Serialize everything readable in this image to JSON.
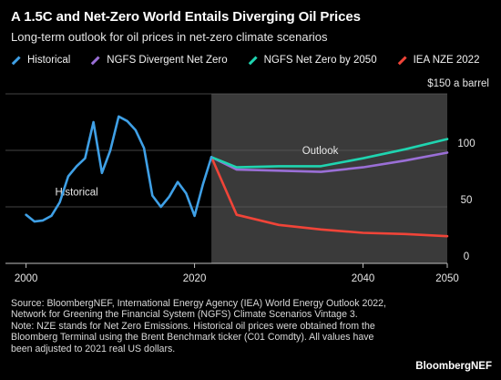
{
  "title": "A 1.5C and Net-Zero World Entails Diverging Oil Prices",
  "subtitle": "Long-term outlook for oil prices in net-zero climate scenarios",
  "legend": [
    {
      "name": "Historical",
      "color": "#3fa0e6"
    },
    {
      "name": "NGFS Divergent Net Zero",
      "color": "#9a6fd6"
    },
    {
      "name": "NGFS Net Zero by 2050",
      "color": "#1fd4b0"
    },
    {
      "name": "IEA NZE 2022",
      "color": "#f04438"
    }
  ],
  "footer": {
    "source": "Source: BloombergNEF, International Energy Agency (IEA) World Energy Outlook 2022, Network for Greening the Financial System (NGFS) Climate Scenarios Vintage 3.",
    "note": "Note: NZE stands for Net Zero Emissions. Historical oil prices were obtained from the Bloomberg Terminal using the Brent Benchmark ticker (C01 Comdty). All values have been adjusted to 2021 real US dollars."
  },
  "brand": "BloombergNEF",
  "chart_data": {
    "type": "line",
    "title": "A 1.5C and Net-Zero World Entails Diverging Oil Prices",
    "subtitle": "Long-term outlook for oil prices in net-zero climate scenarios",
    "xlim": [
      1999.5,
      2050
    ],
    "ylim": [
      0,
      150
    ],
    "xticks": [
      2000,
      2020,
      2040,
      2050
    ],
    "yticks": [
      {
        "value": 150,
        "label": "$150 a barrel"
      },
      {
        "value": 100,
        "label": "100"
      },
      {
        "value": 50,
        "label": "50"
      },
      {
        "value": 0,
        "label": "0"
      }
    ],
    "grid": "horizontal",
    "legend_position": "top",
    "shaded_region": {
      "x_start": 2022,
      "x_end": 2050,
      "label": "Outlook"
    },
    "annotations": [
      {
        "text": "Historical",
        "x": 2006,
        "y": 60
      }
    ],
    "series": [
      {
        "name": "Historical",
        "color": "#3fa0e6",
        "x": [
          2000,
          2001,
          2002,
          2003,
          2004,
          2005,
          2006,
          2007,
          2008,
          2009,
          2010,
          2011,
          2012,
          2013,
          2014,
          2015,
          2016,
          2017,
          2018,
          2019,
          2020,
          2021,
          2022
        ],
        "y": [
          43,
          37,
          38,
          42,
          54,
          77,
          86,
          93,
          125,
          80,
          100,
          130,
          126,
          118,
          102,
          60,
          50,
          59,
          72,
          62,
          42,
          70,
          94
        ]
      },
      {
        "name": "NGFS Divergent Net Zero",
        "color": "#9a6fd6",
        "x": [
          2022,
          2025,
          2030,
          2035,
          2040,
          2045,
          2050
        ],
        "y": [
          94,
          83,
          82,
          81,
          85,
          91,
          98
        ]
      },
      {
        "name": "NGFS Net Zero by 2050",
        "color": "#1fd4b0",
        "x": [
          2022,
          2025,
          2030,
          2035,
          2040,
          2045,
          2050
        ],
        "y": [
          94,
          85,
          86,
          86,
          93,
          101,
          110
        ]
      },
      {
        "name": "IEA NZE 2022",
        "color": "#f04438",
        "x": [
          2022,
          2025,
          2030,
          2035,
          2040,
          2045,
          2050
        ],
        "y": [
          94,
          43,
          34,
          30,
          27,
          26,
          24
        ]
      }
    ]
  }
}
